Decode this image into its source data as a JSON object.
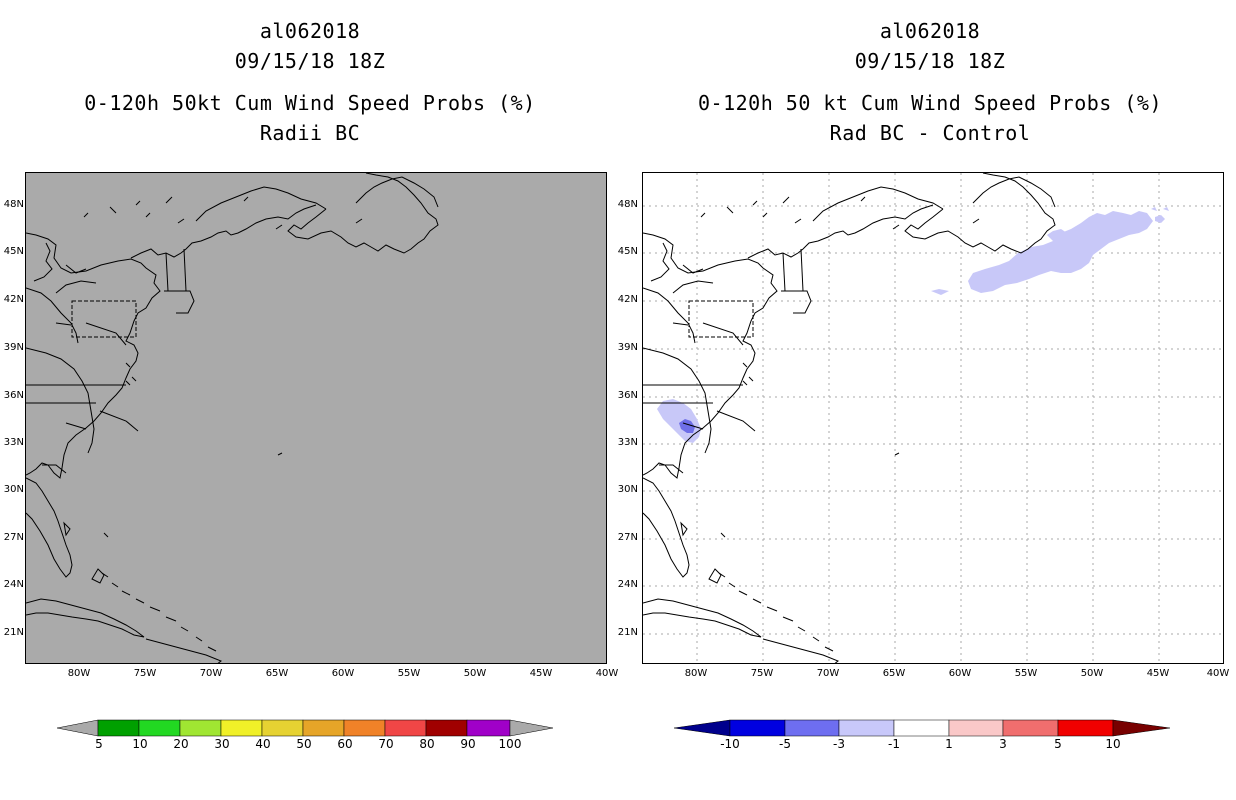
{
  "left_panel": {
    "storm_id": "al062018",
    "datetime": "09/15/18 18Z",
    "product": "0-120h 50kt Cum Wind Speed Probs (%)",
    "subtitle": "Radii BC",
    "field_color": "#aaaaaa"
  },
  "right_panel": {
    "storm_id": "al062018",
    "datetime": "09/15/18 18Z",
    "product": "0-120h 50 kt Cum Wind Speed Probs (%)",
    "subtitle": "Rad BC - Control",
    "anomaly_colors": {
      "light_blue": "#c8c8f8",
      "medium_blue": "#6f6fe8"
    }
  },
  "lat_labels": [
    "48N",
    "45N",
    "42N",
    "39N",
    "36N",
    "33N",
    "30N",
    "27N",
    "24N",
    "21N"
  ],
  "lon_labels": [
    "80W",
    "75W",
    "70W",
    "65W",
    "60W",
    "55W",
    "50W",
    "45W",
    "40W"
  ],
  "left_colorbar": {
    "labels": [
      "5",
      "10",
      "20",
      "30",
      "40",
      "50",
      "60",
      "70",
      "80",
      "90",
      "100"
    ],
    "colors": [
      "#00a000",
      "#22d822",
      "#a0e632",
      "#f0f028",
      "#e6d232",
      "#e6a528",
      "#f08228",
      "#f04646",
      "#a00000",
      "#a000c8",
      "#a020ff"
    ],
    "end_color": "#aaaaaa"
  },
  "right_colorbar": {
    "labels": [
      "-10",
      "-5",
      "-3",
      "-1",
      "1",
      "3",
      "5",
      "10"
    ],
    "colors": [
      "#0000e0",
      "#6e6ef0",
      "#c8c8fa",
      "#ffffff",
      "#fac8c8",
      "#f06e6e",
      "#f00000"
    ],
    "low_color": "#00008c",
    "high_color": "#780000"
  }
}
